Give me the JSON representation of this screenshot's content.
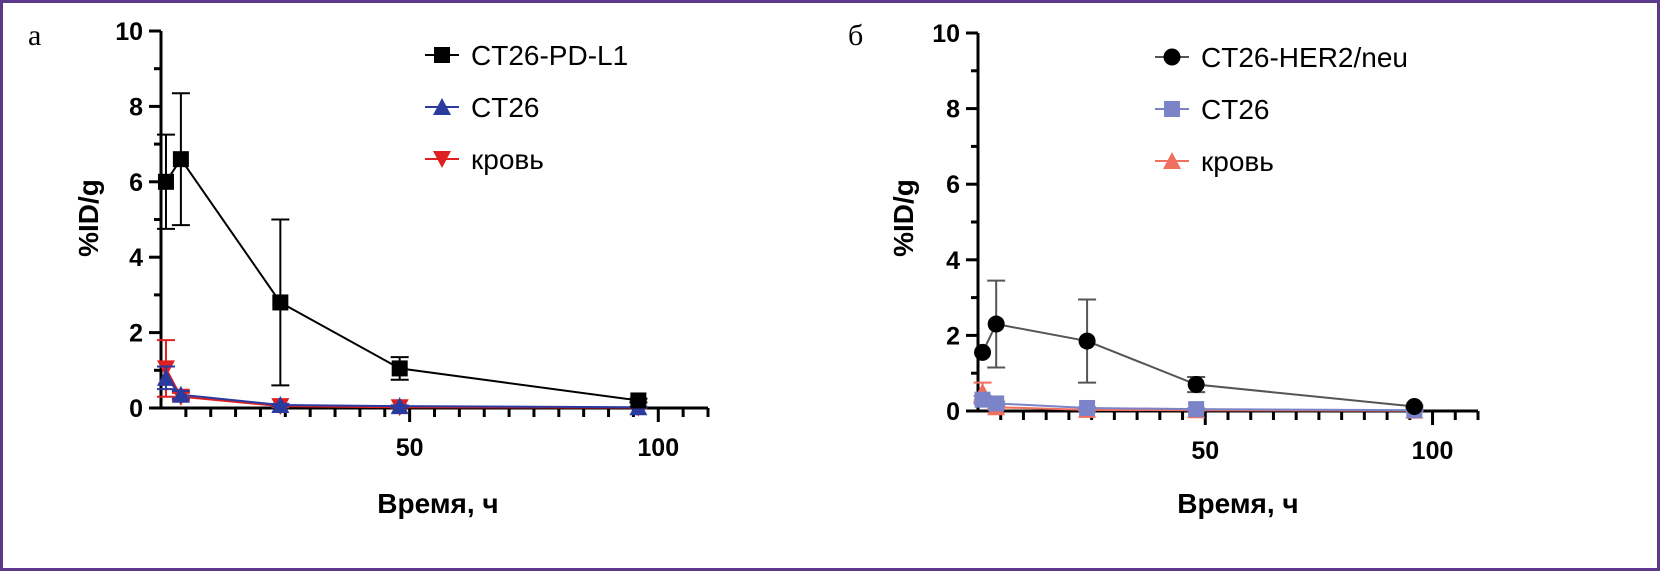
{
  "chart_data": [
    {
      "type": "line",
      "panel_label": "а",
      "xlabel": "Время, ч",
      "ylabel": "%ID/g",
      "xlim": [
        0,
        110
      ],
      "ylim": [
        0,
        10
      ],
      "xticks": [
        50,
        100
      ],
      "yticks": [
        0,
        2,
        4,
        6,
        8,
        10
      ],
      "legend_position": "top-right",
      "grid": false,
      "series": [
        {
          "name": "CT26-PD-L1",
          "color": "#000000",
          "marker": "square",
          "x": [
            1,
            4,
            24,
            48,
            96
          ],
          "y": [
            6.0,
            6.6,
            2.8,
            1.05,
            0.2
          ],
          "err": [
            1.25,
            1.75,
            2.2,
            0.3,
            0.05
          ]
        },
        {
          "name": "CT26",
          "color": "#2b3a9e",
          "marker": "triangle-up",
          "x": [
            1,
            4,
            24,
            48,
            96
          ],
          "y": [
            0.8,
            0.35,
            0.08,
            0.05,
            0.02
          ],
          "err": [
            0.3,
            0.1,
            0.03,
            0.02,
            0.01
          ]
        },
        {
          "name": "кровь",
          "color": "#e02020",
          "marker": "triangle-down",
          "x": [
            1,
            4,
            24,
            48,
            96
          ],
          "y": [
            1.05,
            0.3,
            0.05,
            0.02,
            0.01
          ],
          "err": [
            0.75,
            0.1,
            0.03,
            0.01,
            0.01
          ]
        }
      ]
    },
    {
      "type": "line",
      "panel_label": "б",
      "xlabel": "Время, ч",
      "ylabel": "%ID/g",
      "xlim": [
        0,
        110
      ],
      "ylim": [
        0,
        10
      ],
      "xticks": [
        50,
        100
      ],
      "yticks": [
        0,
        2,
        4,
        6,
        8,
        10
      ],
      "legend_position": "top-right",
      "grid": false,
      "series": [
        {
          "name": "CT26-HER2/neu",
          "color": "#555555",
          "marker_color": "#000000",
          "marker": "circle",
          "x": [
            1,
            4,
            24,
            48,
            96
          ],
          "y": [
            1.55,
            2.3,
            1.85,
            0.7,
            0.12
          ],
          "err": [
            0.0,
            1.15,
            1.1,
            0.2,
            0.03
          ]
        },
        {
          "name": "CT26",
          "color": "#7b84c8",
          "marker": "square",
          "x": [
            1,
            4,
            24,
            48,
            96
          ],
          "y": [
            0.3,
            0.2,
            0.08,
            0.05,
            0.02
          ],
          "err": [
            0.1,
            0.05,
            0.02,
            0.02,
            0.01
          ]
        },
        {
          "name": "кровь",
          "color": "#f07060",
          "marker": "triangle-up",
          "x": [
            1,
            4,
            24,
            48,
            96
          ],
          "y": [
            0.5,
            0.1,
            0.03,
            0.02,
            0.01
          ],
          "err": [
            0.25,
            0.05,
            0.02,
            0.01,
            0.01
          ]
        }
      ]
    }
  ]
}
